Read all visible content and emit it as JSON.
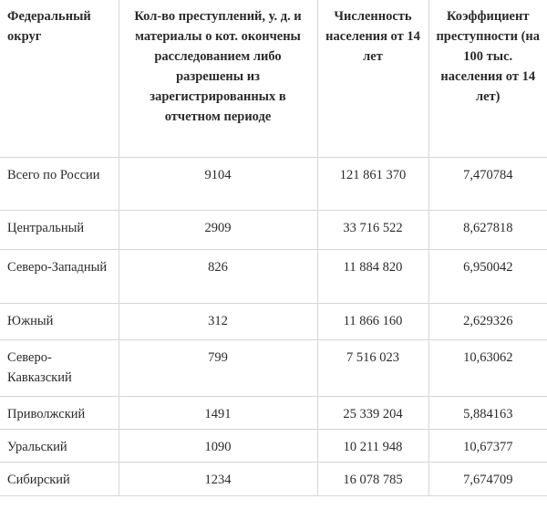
{
  "table": {
    "headers": [
      "Федеральный округ",
      "Кол-во преступлений, у. д. и материалы о кот. окончены расследованием либо разрешены из зарегистрированных в отчетном периоде",
      "Численность населения от 14 лет",
      "Коэффициент преступности (на 100 тыс. населения от 14 лет)"
    ],
    "rows": [
      [
        "Всего по России",
        "9104",
        "121 861 370",
        "7,470784"
      ],
      [
        "Центральный",
        "2909",
        "33 716 522",
        "8,627818"
      ],
      [
        "Северо-Западный",
        "826",
        "11 884 820",
        "6,950042"
      ],
      [
        "Южный",
        "312",
        "11 866 160",
        "2,629326"
      ],
      [
        "Северо-Кавказский",
        "799",
        "7 516 023",
        "10,63062"
      ],
      [
        "Приволжский",
        "1491",
        "25 339 204",
        "5,884163"
      ],
      [
        "Уральский",
        "1090",
        "10 211 948",
        "10,67377"
      ],
      [
        "Сибирский",
        "1234",
        "16 078 785",
        "7,674709"
      ]
    ]
  }
}
